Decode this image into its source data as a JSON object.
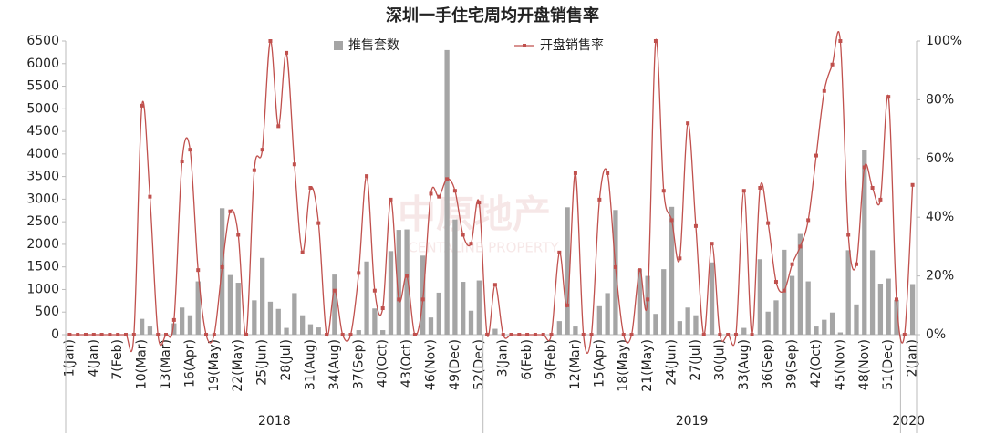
{
  "chart_data": {
    "type": "bar_line",
    "title": "深圳一手住宅周均开盘销售率",
    "watermark": "中原地产",
    "watermark_sub": "CENTALINE PROPERTY",
    "categories": [
      "1(Jan)",
      null,
      null,
      "4(Jan)",
      null,
      null,
      "7(Feb)",
      null,
      null,
      "10(Mar)",
      null,
      null,
      "13(Mar)",
      null,
      null,
      "16(Apr)",
      null,
      null,
      "19(May)",
      null,
      null,
      "22(May)",
      null,
      null,
      "25(Jun)",
      null,
      null,
      "28(Jul)",
      null,
      null,
      "31(Aug)",
      null,
      null,
      "34(Aug)",
      null,
      null,
      "37(Sep)",
      null,
      null,
      "40(Oct)",
      null,
      null,
      "43(Oct)",
      null,
      null,
      "46(Nov)",
      null,
      null,
      "49(Dec)",
      null,
      null,
      "52(Dec)",
      null,
      null,
      "3(Jan)",
      null,
      null,
      "6(Feb)",
      null,
      null,
      "9(Feb)",
      null,
      null,
      "12(Mar)",
      null,
      null,
      "15(Apr)",
      null,
      null,
      "18(May)",
      null,
      null,
      "21(May)",
      null,
      null,
      "24(Jun)",
      null,
      null,
      "27(Jul)",
      null,
      null,
      "30(Jul)",
      null,
      null,
      "33(Aug)",
      null,
      null,
      "36(Sep)",
      null,
      null,
      "39(Sep)",
      null,
      null,
      "42(Oct)",
      null,
      null,
      "45(Nov)",
      null,
      null,
      "48(Nov)",
      null,
      null,
      "51(Dec)",
      null,
      null,
      "2(Jan)"
    ],
    "x_groups": [
      {
        "label": "2018",
        "count": 52
      },
      {
        "label": "2019",
        "count": 52
      },
      {
        "label": "2020",
        "count": 2
      }
    ],
    "series": [
      {
        "name": "推售套数",
        "type": "bar",
        "color": "#a5a5a5",
        "axis": "y",
        "values": [
          0,
          0,
          0,
          0,
          0,
          0,
          0,
          0,
          0,
          350,
          180,
          0,
          0,
          250,
          600,
          430,
          1180,
          0,
          0,
          2800,
          1320,
          1150,
          0,
          760,
          1700,
          730,
          570,
          150,
          920,
          430,
          230,
          160,
          0,
          1330,
          0,
          0,
          100,
          1620,
          580,
          100,
          1850,
          2320,
          2330,
          0,
          1750,
          380,
          930,
          6300,
          2550,
          1170,
          530,
          1200,
          0,
          130,
          0,
          0,
          0,
          0,
          0,
          0,
          0,
          300,
          2820,
          180,
          0,
          0,
          630,
          920,
          2760,
          0,
          0,
          1450,
          1300,
          460,
          1450,
          2830,
          300,
          600,
          430,
          0,
          1600,
          0,
          0,
          0,
          150,
          0,
          1670,
          510,
          760,
          1880,
          1300,
          2230,
          1180,
          180,
          330,
          490,
          50,
          1870,
          670,
          4080,
          1870,
          1130,
          1240,
          770,
          0,
          1120
        ]
      },
      {
        "name": "开盘销售率",
        "type": "line",
        "color": "#c0504d",
        "axis": "y2",
        "values": [
          0,
          0,
          0,
          0,
          0,
          0,
          0,
          0,
          0,
          78,
          47,
          0,
          0,
          5,
          59,
          63,
          22,
          0,
          0,
          23,
          42,
          34,
          0,
          56,
          63,
          100,
          71,
          96,
          58,
          28,
          50,
          38,
          0,
          15,
          0,
          0,
          21,
          54,
          15,
          9,
          46,
          12,
          20,
          0,
          12,
          48,
          47,
          53,
          49,
          34,
          31,
          45,
          0,
          17,
          0,
          0,
          0,
          0,
          0,
          0,
          0,
          28,
          10,
          55,
          0,
          0,
          46,
          55,
          23,
          0,
          0,
          22,
          12,
          100,
          49,
          39,
          26,
          72,
          37,
          0,
          31,
          0,
          0,
          0,
          49,
          0,
          50,
          38,
          18,
          15,
          24,
          30,
          39,
          61,
          83,
          92,
          100,
          34,
          24,
          57,
          50,
          46,
          81,
          12,
          0,
          51
        ]
      }
    ],
    "ylim": [
      0,
      6500
    ],
    "yticks": [
      0,
      500,
      1000,
      1500,
      2000,
      2500,
      3000,
      3500,
      4000,
      4500,
      5000,
      5500,
      6000,
      6500
    ],
    "y2lim": [
      0,
      100
    ],
    "y2ticks": [
      {
        "value": 0,
        "label": "0%"
      },
      {
        "value": 20,
        "label": "20%"
      },
      {
        "value": 40,
        "label": "40%"
      },
      {
        "value": 60,
        "label": "60%"
      },
      {
        "value": 80,
        "label": "80%"
      },
      {
        "value": 100,
        "label": "100%"
      }
    ],
    "legend": "top",
    "grid": false
  }
}
